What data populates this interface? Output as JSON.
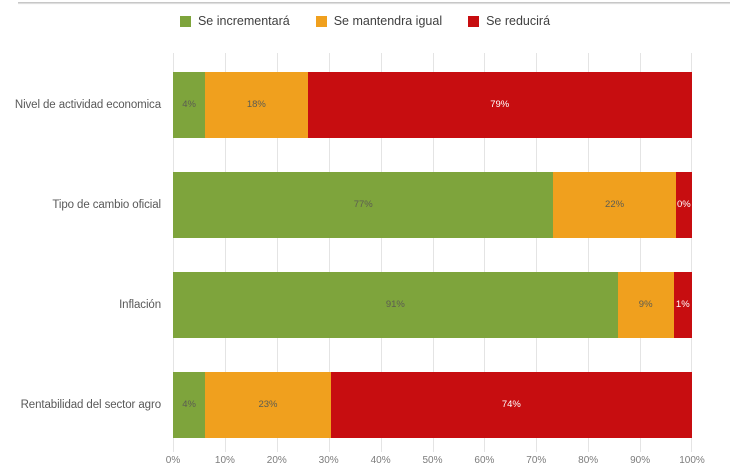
{
  "chart_data": {
    "type": "bar",
    "variant": "horizontal-stacked",
    "title": "",
    "categories": [
      "Nivel de actividad economica",
      "Tipo de cambio oficial",
      "Inflación",
      "Rentabilidad del sector agro"
    ],
    "series": [
      {
        "name": "Se incrementará",
        "color": "#7EA43C",
        "values": [
          4,
          77,
          91,
          4
        ]
      },
      {
        "name": "Se mantendra igual",
        "color": "#F0A01E",
        "values": [
          18,
          22,
          9,
          23
        ]
      },
      {
        "name": "Se reducirá",
        "color": "#C70D10",
        "values": [
          79,
          0,
          1,
          74
        ]
      }
    ],
    "data_labels": [
      [
        "4%",
        "18%",
        "79%"
      ],
      [
        "77%",
        "22%",
        "0%"
      ],
      [
        "91%",
        "9%",
        "1%"
      ],
      [
        "4%",
        "23%",
        "74%"
      ]
    ],
    "x_ticks": [
      "0%",
      "10%",
      "20%",
      "30%",
      "40%",
      "50%",
      "60%",
      "70%",
      "80%",
      "90%",
      "100%"
    ],
    "xlim": [
      0,
      100
    ],
    "grid": "vertical",
    "legend_position": "top",
    "colors": {
      "label_on_red": "#FFFFFF",
      "label_on_green_orange": "#5C5C52",
      "gridline": "#E4E4E4",
      "tick_text": "#7C7C7C",
      "category_text": "#595959",
      "legend_text": "#404040"
    }
  }
}
